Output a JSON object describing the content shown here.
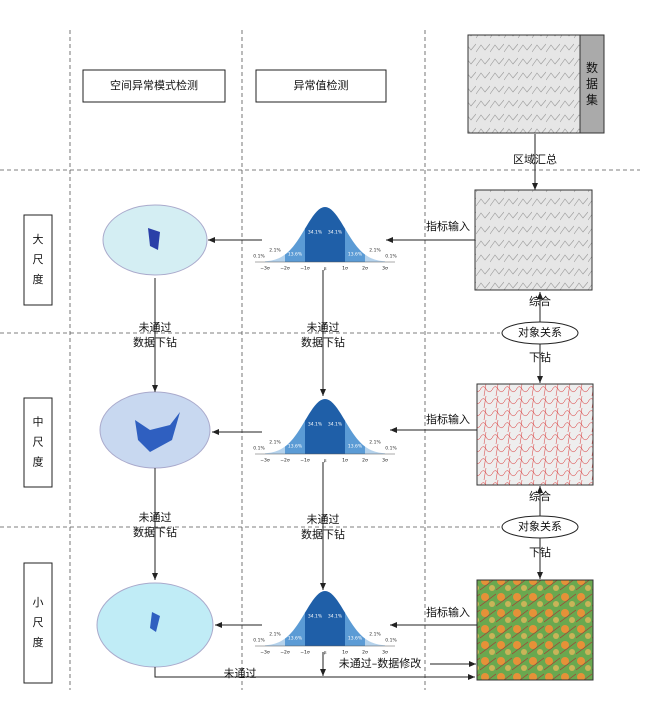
{
  "headers": [
    "空间异常模式检测",
    "异常值检测"
  ],
  "dataset_label": "数据集",
  "region_summary": "区域汇总",
  "scales": [
    "大尺度",
    "中尺度",
    "小尺度"
  ],
  "indicator_input": "指标输入",
  "synthesis": "综合",
  "object_relation": "对象关系",
  "drill_down": "下钻",
  "not_passed_lines": [
    "未通过",
    "数据下钻"
  ],
  "not_passed": "未通过",
  "not_passed_modify": "未通过–数据修改",
  "normal_curve": {
    "percents": [
      "0.1%",
      "2.1%",
      "13.6%",
      "34.1%",
      "34.1%",
      "13.6%",
      "2.1%",
      "0.1%"
    ],
    "axis": [
      "−3σ",
      "−2σ",
      "−1σ",
      "μ",
      "1σ",
      "2σ",
      "3σ"
    ]
  }
}
